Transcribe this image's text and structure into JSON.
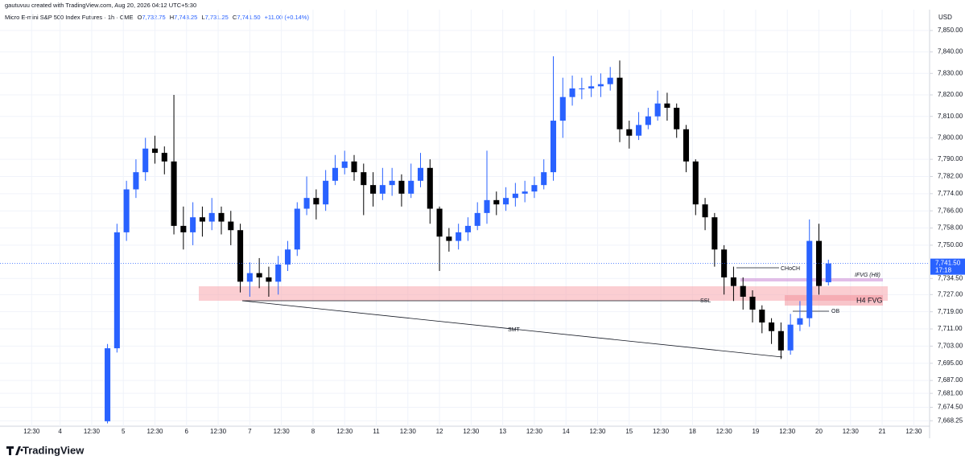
{
  "header": {
    "credit": "gautuvuu created with TradingView.com, Aug 20, 2026 04:12 UTC+5:30",
    "symbol": "Micro E-mini S&P 500 Index Futures · 1h · CME",
    "open_label": "O",
    "open": "7,732.75",
    "high_label": "H",
    "high": "7,743.25",
    "low_label": "L",
    "low": "7,731.25",
    "close_label": "C",
    "close": "7,741.50",
    "change": "+11.00 (+0.14%)"
  },
  "chart_data": {
    "type": "candlestick",
    "currency": "USD",
    "up_color": "#2962ff",
    "down_color": "#000000",
    "xlim": [
      0,
      294
    ],
    "ylim": [
      7665.7,
      7859.7
    ],
    "yticks": [
      {
        "value": 7850,
        "label": "7,850.00"
      },
      {
        "value": 7840,
        "label": "7,840.00"
      },
      {
        "value": 7830,
        "label": "7,830.00"
      },
      {
        "value": 7820,
        "label": "7,820.00"
      },
      {
        "value": 7810,
        "label": "7,810.00"
      },
      {
        "value": 7800,
        "label": "7,800.00"
      },
      {
        "value": 7790,
        "label": "7,790.00"
      },
      {
        "value": 7782,
        "label": "7,782.00"
      },
      {
        "value": 7774,
        "label": "7,774.00"
      },
      {
        "value": 7766,
        "label": "7,766.00"
      },
      {
        "value": 7758,
        "label": "7,758.00"
      },
      {
        "value": 7750,
        "label": "7,750.00"
      },
      {
        "value": 7734.5,
        "label": "7,734.50"
      },
      {
        "value": 7727,
        "label": "7,727.00"
      },
      {
        "value": 7719,
        "label": "7,719.00"
      },
      {
        "value": 7711,
        "label": "7,711.00"
      },
      {
        "value": 7703,
        "label": "7,703.00"
      },
      {
        "value": 7695,
        "label": "7,695.00"
      },
      {
        "value": 7687,
        "label": "7,687.00"
      },
      {
        "value": 7681,
        "label": "7,681.00"
      },
      {
        "value": 7674.5,
        "label": "7,674.50"
      },
      {
        "value": 7668.25,
        "label": "7,668.25"
      }
    ],
    "xticks": [
      {
        "value": 10,
        "label": "12:30"
      },
      {
        "value": 19,
        "label": "4"
      },
      {
        "value": 29,
        "label": "12:30"
      },
      {
        "value": 39,
        "label": "5"
      },
      {
        "value": 49,
        "label": "12:30"
      },
      {
        "value": 59,
        "label": "6"
      },
      {
        "value": 69,
        "label": "12:30"
      },
      {
        "value": 79,
        "label": "7"
      },
      {
        "value": 89,
        "label": "12:30"
      },
      {
        "value": 99,
        "label": "8"
      },
      {
        "value": 109,
        "label": "12:30"
      },
      {
        "value": 119,
        "label": "11"
      },
      {
        "value": 129,
        "label": "12:30"
      },
      {
        "value": 139,
        "label": "12"
      },
      {
        "value": 149,
        "label": "12:30"
      },
      {
        "value": 159,
        "label": "13"
      },
      {
        "value": 169,
        "label": "12:30"
      },
      {
        "value": 179,
        "label": "14"
      },
      {
        "value": 189,
        "label": "12:30"
      },
      {
        "value": 199,
        "label": "15"
      },
      {
        "value": 209,
        "label": "12:30"
      },
      {
        "value": 219,
        "label": "18"
      },
      {
        "value": 229,
        "label": "12:30"
      },
      {
        "value": 239,
        "label": "19"
      },
      {
        "value": 249,
        "label": "12:30"
      },
      {
        "value": 259,
        "label": "20"
      },
      {
        "value": 269,
        "label": "12:30"
      },
      {
        "value": 279,
        "label": "21"
      },
      {
        "value": 289,
        "label": "12:30"
      }
    ],
    "x": [
      34,
      37,
      40,
      43,
      46,
      49,
      52,
      55,
      58,
      61,
      64,
      67,
      70,
      73,
      76,
      79,
      82,
      85,
      88,
      91,
      94,
      97,
      100,
      103,
      106,
      109,
      112,
      115,
      118,
      121,
      124,
      127,
      130,
      133,
      136,
      139,
      142,
      145,
      148,
      151,
      154,
      157,
      160,
      163,
      166,
      169,
      172,
      175,
      178,
      181,
      184,
      187,
      190,
      193,
      196,
      199,
      202,
      205,
      208,
      211,
      214,
      217,
      220,
      223,
      226,
      229,
      232,
      235,
      238,
      241,
      244,
      247,
      250,
      253,
      256,
      259,
      262
    ],
    "open": [
      7668,
      7702,
      7756,
      7776,
      7784,
      7795,
      7793,
      7789,
      7759,
      7756,
      7763,
      7761,
      7765,
      7761,
      7757,
      7733,
      7737,
      7735,
      7733,
      7741,
      7748,
      7767,
      7772,
      7769,
      7780,
      7786,
      7789,
      7784,
      7778,
      7774,
      7778,
      7780,
      7774,
      7780,
      7786,
      7767,
      7754,
      7752,
      7756,
      7759,
      7765,
      7771,
      7769,
      7772,
      7774,
      7775,
      7778,
      7784,
      7808,
      7819,
      7823,
      7823,
      7824,
      7825,
      7828,
      7804,
      7801,
      7806,
      7810,
      7816,
      7814,
      7804,
      7789,
      7769,
      7763,
      7748,
      7735,
      7731,
      7726,
      7720,
      7714,
      7710,
      7701,
      7713,
      7716,
      7752,
      7732.75
    ],
    "high": [
      7704,
      7760,
      7780,
      7790,
      7800,
      7801,
      7796,
      7820,
      7768,
      7770,
      7768,
      7772,
      7768,
      7766,
      7760,
      7742,
      7744,
      7740,
      7745,
      7752,
      7770,
      7782,
      7776,
      7785,
      7792,
      7794,
      7792,
      7788,
      7784,
      7786,
      7786,
      7783,
      7788,
      7793,
      7790,
      7768,
      7758,
      7760,
      7763,
      7770,
      7794,
      7775,
      7777,
      7779,
      7780,
      7782,
      7790,
      7838,
      7828,
      7829,
      7828,
      7829,
      7830,
      7833,
      7836,
      7808,
      7812,
      7814,
      7822,
      7821,
      7816,
      7806,
      7790,
      7772,
      7765,
      7750,
      7740,
      7735,
      7729,
      7722,
      7716,
      7714,
      7718,
      7724,
      7762,
      7760,
      7743.25
    ],
    "low": [
      7667,
      7700,
      7752,
      7772,
      7780,
      7788,
      7783,
      7755,
      7748,
      7750,
      7754,
      7757,
      7755,
      7750,
      7728,
      7726,
      7730,
      7726,
      7727,
      7738,
      7745,
      7764,
      7762,
      7766,
      7778,
      7783,
      7780,
      7764,
      7768,
      7771,
      7773,
      7768,
      7772,
      7777,
      7760,
      7738,
      7747,
      7748,
      7752,
      7757,
      7760,
      7764,
      7766,
      7768,
      7770,
      7772,
      7776,
      7780,
      7800,
      7815,
      7818,
      7819,
      7819,
      7822,
      7798,
      7795,
      7799,
      7804,
      7808,
      7808,
      7800,
      7784,
      7764,
      7757,
      7740,
      7727,
      7724,
      7720,
      7714,
      7709,
      7704,
      7697,
      7699,
      7710,
      7712,
      7727,
      7731.25
    ],
    "close": [
      7702,
      7756,
      7776,
      7784,
      7795,
      7793,
      7789,
      7759,
      7756,
      7763,
      7761,
      7765,
      7761,
      7757,
      7733,
      7737,
      7735,
      7733,
      7741,
      7748,
      7767,
      7772,
      7769,
      7780,
      7786,
      7789,
      7784,
      7778,
      7774,
      7778,
      7780,
      7774,
      7780,
      7786,
      7767,
      7754,
      7752,
      7756,
      7759,
      7765,
      7771,
      7769,
      7772,
      7774,
      7775,
      7778,
      7784,
      7808,
      7819,
      7823,
      7823,
      7824,
      7825,
      7828,
      7804,
      7801,
      7806,
      7810,
      7816,
      7814,
      7804,
      7789,
      7769,
      7763,
      7748,
      7735,
      7731,
      7726,
      7720,
      7714,
      7710,
      7701,
      7713,
      7716,
      7752,
      7731,
      7741.5
    ],
    "last_price_label": "7,741.50",
    "countdown": "17:18",
    "annotations": {
      "choch": "CHoCH",
      "ifvg": "IFVG (H8)",
      "h4_fvg": "H4 FVG",
      "ssl": "SSL",
      "smt": "SMT",
      "ob": "OB"
    }
  },
  "footer": {
    "brand": "TradingView"
  }
}
